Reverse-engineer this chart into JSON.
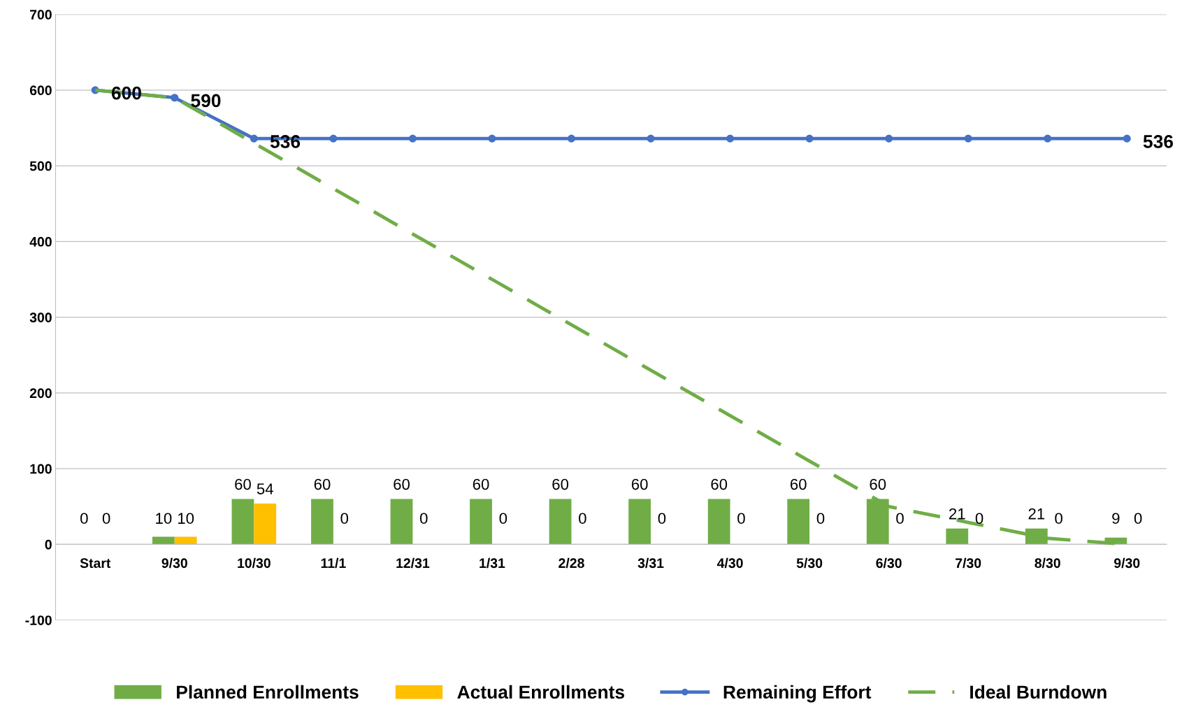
{
  "chart_data": {
    "type": "bar",
    "categories": [
      "Start",
      "9/30",
      "10/30",
      "11/1",
      "12/31",
      "1/31",
      "2/28",
      "3/31",
      "4/30",
      "5/30",
      "6/30",
      "7/30",
      "8/30",
      "9/30"
    ],
    "series": [
      {
        "name": "Planned Enrollments",
        "color": "#70ad47",
        "values": [
          0,
          10,
          60,
          60,
          60,
          60,
          60,
          60,
          60,
          60,
          60,
          21,
          21,
          9
        ],
        "value_labels": [
          "0",
          "10",
          "60",
          "60",
          "60",
          "60",
          "60",
          "60",
          "60",
          "60",
          "60",
          "21",
          "21",
          "9"
        ]
      },
      {
        "name": "Actual Enrollments",
        "color": "#ffc000",
        "values": [
          0,
          10,
          54,
          0,
          0,
          0,
          0,
          0,
          0,
          0,
          0,
          0,
          0,
          0
        ],
        "value_labels": [
          "0",
          "10",
          "54",
          "0",
          "0",
          "0",
          "0",
          "0",
          "0",
          "0",
          "0",
          "0",
          "0",
          "0"
        ]
      },
      {
        "name": "Remaining Effort",
        "type": "line",
        "color": "#4472c4",
        "marker": "circle",
        "line_style": "solid",
        "values": [
          600,
          590,
          536,
          536,
          536,
          536,
          536,
          536,
          536,
          536,
          536,
          536,
          536,
          536
        ],
        "value_labels": [
          "600",
          "590",
          "536",
          null,
          null,
          null,
          null,
          null,
          null,
          null,
          null,
          null,
          null,
          "536"
        ]
      },
      {
        "name": "Ideal Burndown",
        "type": "line",
        "color": "#70ad47",
        "marker": "none",
        "line_style": "dashed",
        "values": [
          600,
          590,
          530,
          470,
          410,
          350,
          290,
          230,
          170,
          110,
          50,
          29,
          8,
          0
        ]
      }
    ],
    "ylim": [
      -100,
      700
    ],
    "yticks": [
      -100,
      0,
      100,
      200,
      300,
      400,
      500,
      600,
      700
    ],
    "grid": "y",
    "legend": "bottom"
  }
}
